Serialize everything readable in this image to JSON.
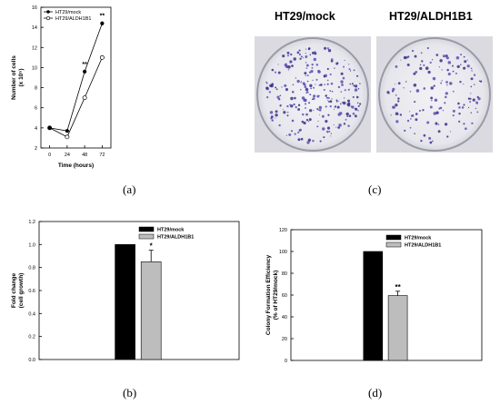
{
  "panel_labels": {
    "a": "(a)",
    "b": "(b)",
    "c": "(c)",
    "d": "(d)"
  },
  "dish_titles": {
    "left": "HT29/mock",
    "right": "HT29/ALDH1B1"
  },
  "chart_data": [
    {
      "type": "line",
      "panel": "a",
      "xlabel": "Time (hours)",
      "ylabel_lines": [
        "Number of cells",
        "(x 10⁵)"
      ],
      "x": [
        0,
        24,
        48,
        72
      ],
      "x_ticks": [
        "0",
        "24",
        "48",
        "72"
      ],
      "xlim": [
        -12,
        84
      ],
      "y_ticks": [
        "2",
        "4",
        "6",
        "8",
        "10",
        "12",
        "14",
        "16"
      ],
      "ylim": [
        2,
        16
      ],
      "legend_position": "top-left",
      "series": [
        {
          "name": "HT29/mock",
          "values": [
            4.0,
            3.7,
            9.6,
            14.4
          ],
          "marker": "filled-circle",
          "errors": [
            0,
            0,
            0.15,
            0.2
          ]
        },
        {
          "name": "HT29/ALDH1B1",
          "values": [
            4.0,
            3.1,
            7.0,
            11.0
          ],
          "marker": "open-circle",
          "errors": [
            0,
            0,
            0,
            0
          ]
        }
      ],
      "annotations": [
        {
          "x": 48,
          "text": "**"
        },
        {
          "x": 72,
          "text": "**"
        }
      ]
    },
    {
      "type": "bar",
      "panel": "b",
      "ylabel_lines": [
        "Fold change",
        "(cell growth)"
      ],
      "y_ticks": [
        "0.0",
        "0.2",
        "0.4",
        "0.6",
        "0.8",
        "1.0",
        "1.2"
      ],
      "ylim": [
        0,
        1.2
      ],
      "legend_position": "top-right",
      "series": [
        {
          "name": "HT29/mock",
          "values": [
            1.0
          ],
          "errors": [
            0
          ],
          "color": "#000000"
        },
        {
          "name": "HT29/ALDH1B1",
          "values": [
            0.85
          ],
          "errors": [
            0.1
          ],
          "color": "#bdbdbd"
        }
      ],
      "annotations": [
        {
          "series": "HT29/ALDH1B1",
          "text": "*"
        }
      ]
    },
    {
      "type": "bar",
      "panel": "d",
      "ylabel_lines": [
        "Colony Formation Efficiency",
        "(% of HT29/mock)"
      ],
      "y_ticks": [
        "0",
        "20",
        "40",
        "60",
        "80",
        "100",
        "120"
      ],
      "ylim": [
        0,
        120
      ],
      "legend_position": "top-right",
      "series": [
        {
          "name": "HT29/mock",
          "values": [
            100
          ],
          "errors": [
            0
          ],
          "color": "#000000"
        },
        {
          "name": "HT29/ALDH1B1",
          "values": [
            59.5
          ],
          "errors": [
            4
          ],
          "color": "#bdbdbd"
        }
      ],
      "annotations": [
        {
          "series": "HT29/ALDH1B1",
          "text": "**"
        }
      ]
    }
  ]
}
